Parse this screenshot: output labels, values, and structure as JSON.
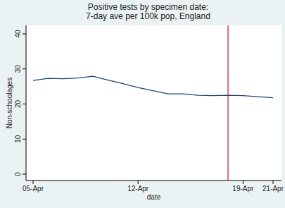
{
  "chart_data": {
    "type": "line",
    "title": [
      "Positive tests by specimen date:",
      "7-day ave per 100k pop, England"
    ],
    "x_label": "date",
    "y_label": "Non-schoolages",
    "x": [
      5,
      6,
      7,
      8,
      9,
      10,
      11,
      12,
      13,
      14,
      15,
      16,
      17,
      18,
      19,
      20,
      21
    ],
    "values": [
      26.7,
      27.3,
      27.2,
      27.4,
      27.9,
      26.8,
      25.8,
      24.7,
      23.8,
      22.9,
      22.9,
      22.5,
      22.4,
      22.5,
      22.4,
      22.1,
      21.8
    ],
    "color": "#1a476f",
    "xlim": [
      5,
      21
    ],
    "xticks": [
      {
        "value": 5,
        "label": "05-Apr"
      },
      {
        "value": 12,
        "label": "12-Apr"
      },
      {
        "value": 19,
        "label": "19-Apr"
      },
      {
        "value": 21,
        "label": "21-Apr"
      }
    ],
    "ylim": [
      0,
      40
    ],
    "yticks": [
      0,
      10,
      20,
      30,
      40
    ],
    "grid": false,
    "reference_line": {
      "x": 18,
      "color": "#c8102e"
    }
  }
}
